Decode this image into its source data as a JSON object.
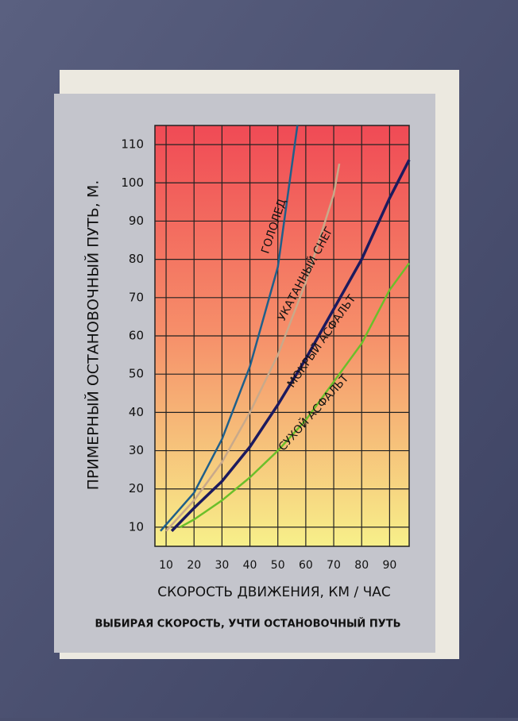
{
  "chart_data": {
    "type": "line",
    "y_label": "ПРИМЕРНЫЙ ОСТАНОВОЧНЫЙ ПУТЬ, М.",
    "x_label": "СКОРОСТЬ ДВИЖЕНИЯ, КМ / ЧАС",
    "caption": "ВЫБИРАЯ СКОРОСТЬ, УЧТИ ОСТАНОВОЧНЫЙ ПУТЬ",
    "xlim": [
      6,
      97
    ],
    "xticks": [
      10,
      20,
      30,
      40,
      50,
      60,
      70,
      80,
      90
    ],
    "ylim": [
      5,
      115
    ],
    "yticks": [
      10,
      20,
      30,
      40,
      50,
      60,
      70,
      80,
      90,
      100,
      110
    ],
    "grid": true,
    "series": [
      {
        "name": "ГОЛОЛЕД",
        "color": "#1f5f8a",
        "x": [
          8,
          20,
          30,
          40,
          50,
          57
        ],
        "values": [
          9,
          19,
          33,
          52,
          78,
          115
        ]
      },
      {
        "name": "УКАТАННЫЙ СНЕГ",
        "color": "#c9a98a",
        "x": [
          10,
          20,
          30,
          40,
          50,
          60,
          70,
          72
        ],
        "values": [
          9,
          17,
          27,
          40,
          55,
          74,
          97,
          105
        ]
      },
      {
        "name": "МОКРЫЙ АСФАЛЬТ",
        "color": "#1c1a5e",
        "x": [
          12,
          20,
          30,
          40,
          50,
          60,
          70,
          80,
          90,
          97
        ],
        "values": [
          9,
          15,
          22,
          31,
          42,
          54,
          67,
          80,
          96,
          106
        ]
      },
      {
        "name": "СУХОЙ АСФАЛЬТ",
        "color": "#6bbf2a",
        "x": [
          15,
          20,
          30,
          40,
          50,
          60,
          70,
          80,
          90,
          97
        ],
        "values": [
          10,
          12,
          17,
          23,
          30,
          38,
          48,
          58,
          72,
          79
        ]
      }
    ]
  }
}
